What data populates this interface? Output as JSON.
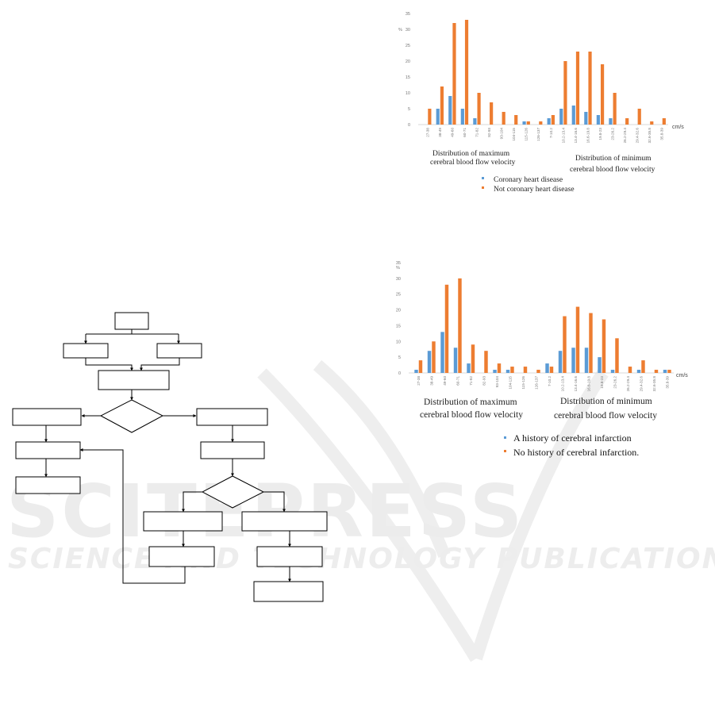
{
  "watermark": {
    "title": "SCITEPRESS",
    "subtitle": "SCIENCE AND TECHNOLOGY PUBLICATIONS"
  },
  "colors": {
    "series_a": "#5b9bd5",
    "series_b": "#ed7d31",
    "axis": "#d9d9d9",
    "flow_line": "#000000"
  },
  "flowchart": {
    "boxes": 12,
    "decisions": 2,
    "labels": []
  },
  "chart_data": [
    {
      "type": "bar",
      "ylabel": "%",
      "ylim": [
        0,
        35
      ],
      "yticks": [
        0,
        5,
        10,
        15,
        20,
        25,
        30,
        35
      ],
      "unit_label": "cm/s",
      "group_labels": [
        [
          "Distribution of maximum",
          "cerebral blood flow velocity"
        ],
        [
          "Distribution of minimum",
          "cerebral blood flow velocity"
        ]
      ],
      "categories": [
        "27-38",
        "38-49",
        "49-60",
        "60-71",
        "71-82",
        "82-93",
        "93-104",
        "104-115",
        "115-126",
        "126-137",
        "7-10.2",
        "10.2-13.4",
        "13.4-16.6",
        "16.6-19.8",
        "19.8-23",
        "23-26.2",
        "26.2-29.4",
        "29.4-32.6",
        "32.6-35.8",
        "35.8-39"
      ],
      "series": [
        {
          "name": "Coronary heart disease",
          "values": [
            0,
            5,
            9,
            5,
            2,
            0,
            0,
            0,
            1,
            0,
            2,
            5,
            6,
            4,
            3,
            2,
            0,
            0,
            0,
            0
          ]
        },
        {
          "name": "Not coronary heart disease",
          "values": [
            5,
            12,
            32,
            33,
            10,
            7,
            4,
            3,
            1,
            1,
            3,
            20,
            23,
            23,
            19,
            10,
            2,
            5,
            1,
            2
          ]
        }
      ],
      "legend": "bottom"
    },
    {
      "type": "bar",
      "ylabel": "%",
      "ylim": [
        0,
        35
      ],
      "yticks": [
        0,
        5,
        10,
        15,
        20,
        25,
        30,
        35
      ],
      "unit_label": "cm/s",
      "group_labels": [
        [
          "Distribution of maximum",
          "cerebral blood flow velocity"
        ],
        [
          "Distribution of minimum",
          "cerebral blood flow velocity"
        ]
      ],
      "categories": [
        "27-38",
        "38-49",
        "49-60",
        "60-71",
        "71-82",
        "82-93",
        "93-104",
        "104-115",
        "115-126",
        "126-137",
        "7-10.2",
        "10.2-13.4",
        "13.4-16.6",
        "16.6-19.8",
        "19.8-23",
        "23-26.2",
        "26.2-29.4",
        "29.4-32.6",
        "32.6-35.8",
        "35.8-39"
      ],
      "series": [
        {
          "name": "A history of cerebral infarction",
          "values": [
            1,
            7,
            13,
            8,
            3,
            0,
            1,
            1,
            0,
            0,
            3,
            7,
            8,
            8,
            5,
            1,
            0,
            1,
            0,
            1
          ]
        },
        {
          "name": "No history of cerebral infarction.",
          "values": [
            4,
            10,
            28,
            30,
            9,
            7,
            3,
            2,
            2,
            1,
            2,
            18,
            21,
            19,
            17,
            11,
            2,
            4,
            1,
            1
          ]
        }
      ],
      "legend": "bottom"
    }
  ]
}
